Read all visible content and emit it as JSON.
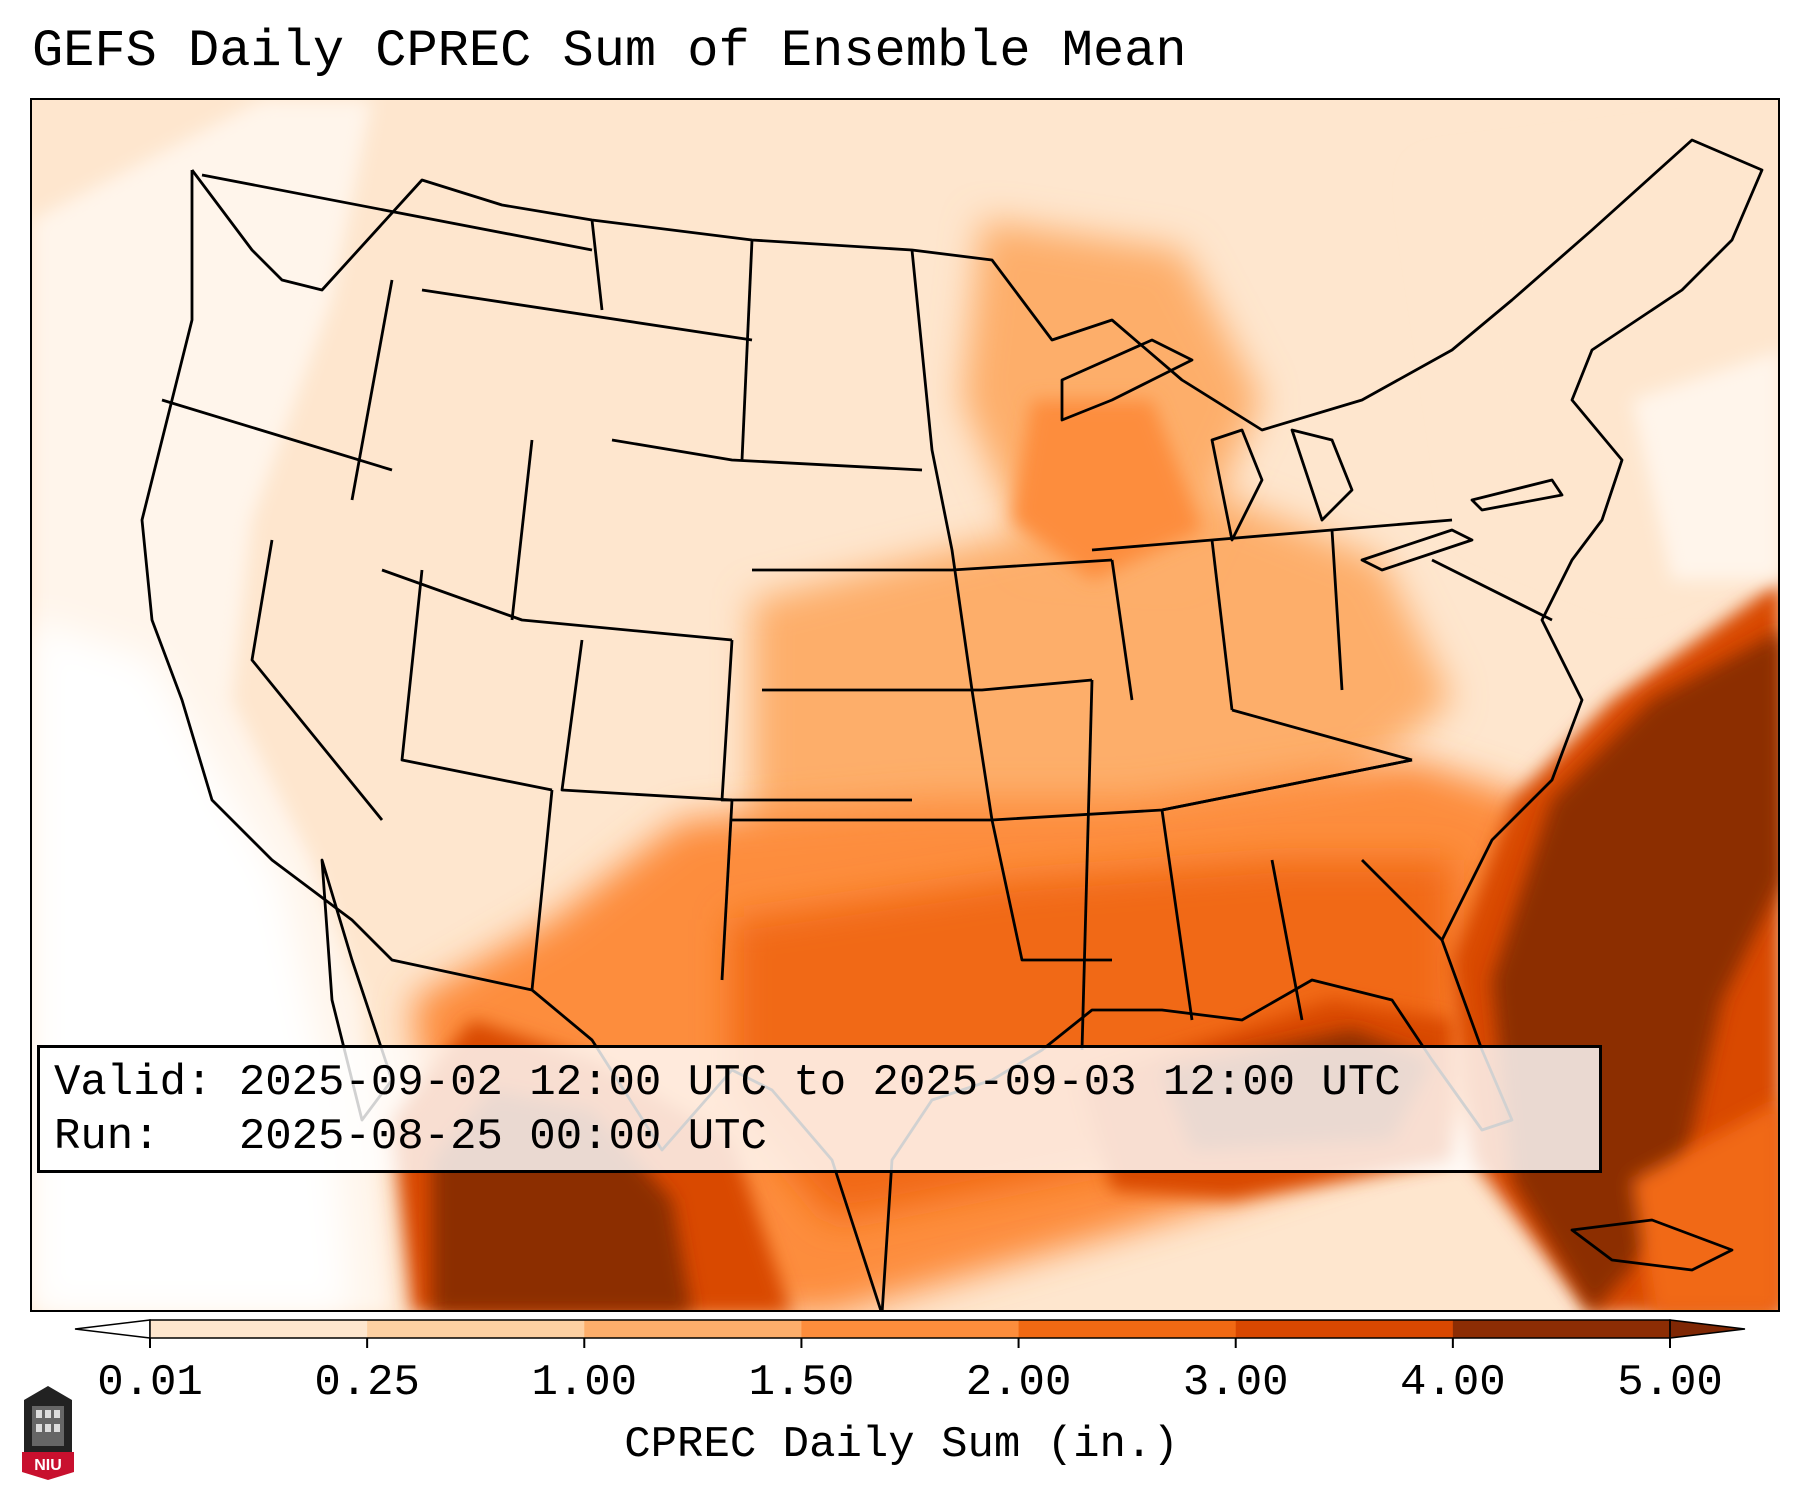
{
  "title": "GEFS Daily CPREC Sum of Ensemble Mean",
  "info": {
    "valid_label": "Valid:",
    "valid_value": "2025-09-02 12:00 UTC to 2025-09-03 12:00 UTC",
    "run_label": "Run:",
    "run_value": "2025-08-25 00:00 UTC"
  },
  "colorbar": {
    "title": "CPREC Daily Sum (in.)",
    "ticks": [
      "0.01",
      "0.25",
      "1.00",
      "1.50",
      "2.00",
      "3.00",
      "4.00",
      "5.00"
    ],
    "colors": [
      "#fff5eb",
      "#fee6ce",
      "#fdd0a2",
      "#fdae6b",
      "#fd8d3c",
      "#f16913",
      "#d94801",
      "#8c2d04"
    ],
    "under_color": "#ffffff",
    "over_color": "#7f2704"
  },
  "logo": {
    "text": "NIU",
    "icon": "niu-logo-icon"
  },
  "map": {
    "region": "Continental United States",
    "variable": "CPREC"
  }
}
